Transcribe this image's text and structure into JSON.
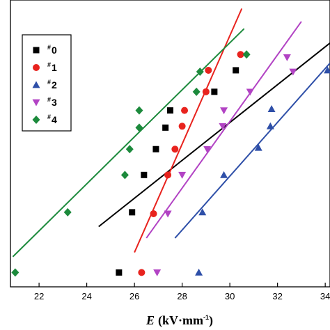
{
  "chart_data": {
    "type": "scatter",
    "xlabel_var": "E",
    "xlabel_unit": "(kV·mm",
    "xlabel_unit_sup": "-1",
    "xlabel_close": ")",
    "ylabel": "",
    "xlim": [
      20.8,
      34.2
    ],
    "ylim": [
      0,
      10
    ],
    "xticks": [
      22,
      24,
      26,
      28,
      30,
      32,
      34
    ],
    "xtick_labels": [
      "22",
      "24",
      "26",
      "28",
      "30",
      "32",
      "34"
    ],
    "grid": false,
    "legend_position": "top-left",
    "series": [
      {
        "name": "0",
        "marker": "square",
        "color": "#000000",
        "points": [
          {
            "x": 25.35,
            "y": 0.5
          },
          {
            "x": 25.9,
            "y": 2.6
          },
          {
            "x": 26.4,
            "y": 3.9
          },
          {
            "x": 26.9,
            "y": 4.8
          },
          {
            "x": 27.3,
            "y": 5.55
          },
          {
            "x": 27.5,
            "y": 6.15
          },
          {
            "x": 29.35,
            "y": 6.8
          },
          {
            "x": 30.25,
            "y": 7.55
          }
        ],
        "fit": {
          "x": [
            24.5,
            34.2
          ],
          "y": [
            2.1,
            8.5
          ]
        }
      },
      {
        "name": "1",
        "marker": "circle",
        "color": "#e8231e",
        "points": [
          {
            "x": 26.3,
            "y": 0.5
          },
          {
            "x": 26.8,
            "y": 2.55
          },
          {
            "x": 27.4,
            "y": 3.9
          },
          {
            "x": 27.7,
            "y": 4.8
          },
          {
            "x": 28.0,
            "y": 5.6
          },
          {
            "x": 28.1,
            "y": 6.15
          },
          {
            "x": 29.0,
            "y": 6.8
          },
          {
            "x": 29.1,
            "y": 7.55
          },
          {
            "x": 30.45,
            "y": 8.1
          }
        ],
        "fit": {
          "x": [
            26.0,
            30.5
          ],
          "y": [
            1.2,
            9.7
          ]
        }
      },
      {
        "name": "2",
        "marker": "triangle-up",
        "color": "#2e4fa8",
        "points": [
          {
            "x": 28.7,
            "y": 0.5
          },
          {
            "x": 28.85,
            "y": 2.6
          },
          {
            "x": 29.75,
            "y": 3.9
          },
          {
            "x": 31.2,
            "y": 4.85
          },
          {
            "x": 31.7,
            "y": 5.6
          },
          {
            "x": 31.75,
            "y": 6.2
          },
          {
            "x": 34.1,
            "y": 7.55
          }
        ],
        "fit": {
          "x": [
            27.7,
            34.2
          ],
          "y": [
            1.7,
            7.8
          ]
        }
      },
      {
        "name": "3",
        "marker": "triangle-down",
        "color": "#b243c4",
        "points": [
          {
            "x": 26.95,
            "y": 0.5
          },
          {
            "x": 27.4,
            "y": 2.55
          },
          {
            "x": 28.0,
            "y": 3.9
          },
          {
            "x": 29.05,
            "y": 4.8
          },
          {
            "x": 29.7,
            "y": 5.6
          },
          {
            "x": 29.75,
            "y": 6.15
          },
          {
            "x": 30.85,
            "y": 6.8
          },
          {
            "x": 32.65,
            "y": 7.5
          },
          {
            "x": 32.4,
            "y": 8.0
          }
        ],
        "fit": {
          "x": [
            26.5,
            33.0
          ],
          "y": [
            1.7,
            9.25
          ]
        }
      },
      {
        "name": "4",
        "marker": "diamond",
        "color": "#1c8a3c",
        "points": [
          {
            "x": 21.0,
            "y": 0.5
          },
          {
            "x": 23.2,
            "y": 2.6
          },
          {
            "x": 25.6,
            "y": 3.9
          },
          {
            "x": 25.8,
            "y": 4.8
          },
          {
            "x": 26.2,
            "y": 5.55
          },
          {
            "x": 26.2,
            "y": 6.15
          },
          {
            "x": 28.6,
            "y": 6.8
          },
          {
            "x": 28.75,
            "y": 7.5
          },
          {
            "x": 30.7,
            "y": 8.1
          }
        ],
        "fit": {
          "x": [
            20.9,
            30.6
          ],
          "y": [
            1.05,
            9.0
          ]
        }
      }
    ]
  }
}
